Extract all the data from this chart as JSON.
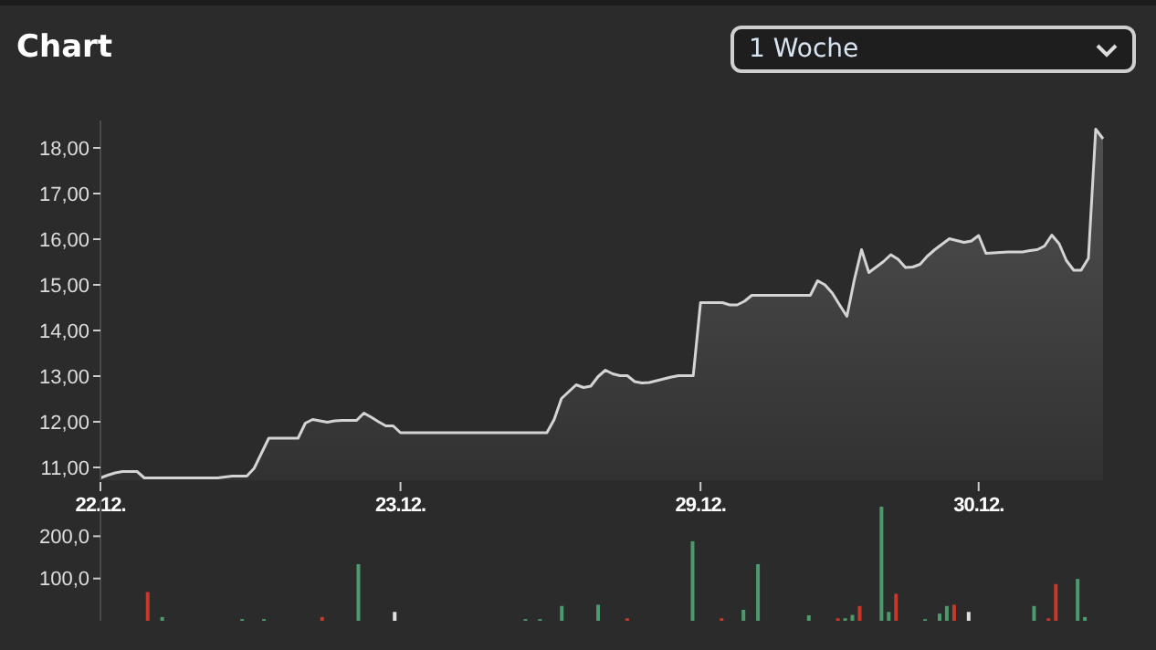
{
  "chart_data": [
    {
      "type": "area",
      "title": "Chart",
      "annotations": [
        "1 Woche"
      ],
      "categories": [
        "22.12.",
        null,
        null,
        null,
        null,
        null,
        null,
        null,
        null,
        null,
        null,
        null,
        null,
        null,
        null,
        null,
        null,
        null,
        null,
        null,
        null,
        null,
        null,
        null,
        null,
        null,
        null,
        null,
        null,
        null,
        null,
        null,
        null,
        null,
        null,
        null,
        null,
        null,
        null,
        null,
        null,
        "23.12.",
        null,
        null,
        null,
        null,
        null,
        null,
        null,
        null,
        null,
        null,
        null,
        null,
        null,
        null,
        null,
        null,
        null,
        null,
        null,
        null,
        null,
        null,
        null,
        null,
        null,
        null,
        null,
        null,
        null,
        null,
        null,
        null,
        null,
        null,
        null,
        null,
        null,
        null,
        null,
        null,
        "29.12.",
        null,
        null,
        null,
        null,
        null,
        null,
        null,
        null,
        null,
        null,
        null,
        null,
        null,
        null,
        null,
        null,
        null,
        null,
        null,
        null,
        null,
        null,
        null,
        null,
        null,
        null,
        null,
        null,
        null,
        null,
        null,
        null,
        null,
        null,
        null,
        null,
        null,
        "30.12.",
        null,
        null,
        null,
        null,
        null,
        null,
        null,
        null,
        null,
        null,
        null,
        null,
        null,
        null,
        null,
        null,
        null
      ],
      "series": [
        {
          "color": "#d4d4d4",
          "values": [
            10.77,
            10.83,
            10.88,
            10.91,
            10.91,
            10.91,
            10.77,
            10.77,
            10.77,
            10.77,
            10.77,
            10.77,
            10.77,
            10.77,
            10.77,
            10.77,
            10.77,
            10.79,
            10.81,
            10.81,
            10.81,
            10.98,
            11.31,
            11.64,
            11.64,
            11.64,
            11.64,
            11.64,
            11.97,
            12.05,
            12.02,
            11.99,
            12.02,
            12.03,
            12.03,
            12.03,
            12.19,
            12.1,
            12.0,
            11.91,
            11.91,
            11.76,
            11.76,
            11.76,
            11.76,
            11.76,
            11.76,
            11.76,
            11.76,
            11.76,
            11.76,
            11.76,
            11.76,
            11.76,
            11.76,
            11.76,
            11.76,
            11.76,
            11.76,
            11.76,
            11.76,
            11.76,
            12.05,
            12.51,
            12.66,
            12.81,
            12.75,
            12.78,
            12.99,
            13.13,
            13.05,
            13.01,
            13.01,
            12.88,
            12.85,
            12.86,
            12.9,
            12.94,
            12.98,
            13.01,
            13.01,
            13.01,
            14.61,
            14.61,
            14.61,
            14.61,
            14.56,
            14.56,
            14.64,
            14.77,
            14.77,
            14.77,
            14.77,
            14.77,
            14.77,
            14.77,
            14.77,
            14.77,
            15.09,
            15.0,
            14.82,
            14.56,
            14.31,
            15.1,
            15.77,
            15.27,
            15.39,
            15.51,
            15.66,
            15.56,
            15.38,
            15.39,
            15.45,
            15.63,
            15.77,
            15.89,
            16.01,
            15.97,
            15.93,
            15.96,
            16.08,
            15.69,
            15.7,
            15.71,
            15.72,
            15.72,
            15.72,
            15.75,
            15.77,
            15.85,
            16.09,
            15.9,
            15.53,
            15.32,
            15.32,
            15.58,
            18.41,
            18.2
          ]
        }
      ],
      "ylim": [
        10.72,
        18.6
      ],
      "yticks": [
        {
          "value": 11,
          "label": "11,00"
        },
        {
          "value": 12,
          "label": "12,00"
        },
        {
          "value": 13,
          "label": "13,00"
        },
        {
          "value": 14,
          "label": "14,00"
        },
        {
          "value": 15,
          "label": "15,00"
        },
        {
          "value": 16,
          "label": "16,00"
        },
        {
          "value": 17,
          "label": "17,00"
        },
        {
          "value": 18,
          "label": "18,00"
        }
      ]
    },
    {
      "type": "bar",
      "tick_labels": "y",
      "categories": [
        "22.12.",
        null,
        null,
        null,
        null,
        null,
        null,
        null,
        null,
        null,
        null,
        null,
        null,
        null,
        null,
        null,
        null,
        null,
        null,
        null,
        null,
        null,
        null,
        null,
        null,
        null,
        null,
        null,
        null,
        null,
        null,
        null,
        null,
        null,
        null,
        null,
        null,
        null,
        null,
        null,
        null,
        "23.12.",
        null,
        null,
        null,
        null,
        null,
        null,
        null,
        null,
        null,
        null,
        null,
        null,
        null,
        null,
        null,
        null,
        null,
        null,
        null,
        null,
        null,
        null,
        null,
        null,
        null,
        null,
        null,
        null,
        null,
        null,
        null,
        null,
        null,
        null,
        null,
        null,
        null,
        null,
        null,
        null,
        "29.12.",
        null,
        null,
        null,
        null,
        null,
        null,
        null,
        null,
        null,
        null,
        null,
        null,
        null,
        null,
        null,
        null,
        null,
        null,
        null,
        null,
        null,
        null,
        null,
        null,
        null,
        null,
        null,
        null,
        null,
        null,
        null,
        null,
        null,
        null,
        null,
        null,
        null,
        "30.12.",
        null,
        null,
        null,
        null,
        null,
        null,
        null,
        null,
        null,
        null,
        null,
        null,
        null,
        null,
        null,
        null,
        null
      ],
      "values": [
        null,
        null,
        null,
        null,
        null,
        null,
        68,
        null,
        9,
        null,
        null,
        null,
        null,
        null,
        null,
        null,
        null,
        null,
        null,
        4,
        null,
        null,
        4,
        null,
        null,
        null,
        null,
        null,
        null,
        null,
        9,
        null,
        null,
        null,
        null,
        134,
        null,
        null,
        null,
        null,
        21,
        null,
        null,
        null,
        null,
        null,
        null,
        null,
        null,
        null,
        null,
        null,
        null,
        null,
        null,
        null,
        null,
        null,
        4,
        null,
        4,
        null,
        null,
        35,
        null,
        null,
        null,
        null,
        38,
        null,
        null,
        null,
        6,
        null,
        null,
        null,
        null,
        null,
        null,
        null,
        null,
        188,
        null,
        null,
        null,
        6,
        null,
        null,
        26,
        null,
        134,
        null,
        null,
        null,
        null,
        null,
        null,
        13,
        null,
        null,
        null,
        6,
        6,
        14,
        35,
        null,
        null,
        270,
        21,
        64,
        null,
        null,
        null,
        4,
        null,
        17,
        35,
        38,
        null,
        21,
        null,
        null,
        null,
        null,
        null,
        null,
        null,
        null,
        35,
        null,
        6,
        87,
        null,
        null,
        99,
        9,
        null,
        null
      ],
      "colors": [
        null,
        null,
        null,
        null,
        null,
        null,
        "#c8392b",
        null,
        "#4c9a6e",
        null,
        null,
        null,
        null,
        null,
        null,
        null,
        null,
        null,
        null,
        "#4c9a6e",
        null,
        null,
        "#4c9a6e",
        null,
        null,
        null,
        null,
        null,
        null,
        null,
        "#c8392b",
        null,
        null,
        null,
        null,
        "#4c9a6e",
        null,
        null,
        null,
        null,
        "#e0e0e0",
        null,
        null,
        null,
        null,
        null,
        null,
        null,
        null,
        null,
        null,
        null,
        null,
        null,
        null,
        null,
        null,
        null,
        "#4c9a6e",
        null,
        "#4c9a6e",
        null,
        null,
        "#4c9a6e",
        null,
        null,
        null,
        null,
        "#4c9a6e",
        null,
        null,
        null,
        "#c8392b",
        null,
        null,
        null,
        null,
        null,
        null,
        null,
        null,
        "#4c9a6e",
        null,
        null,
        null,
        "#c8392b",
        null,
        null,
        "#4c9a6e",
        null,
        "#4c9a6e",
        null,
        null,
        null,
        null,
        null,
        null,
        "#4c9a6e",
        null,
        null,
        null,
        "#c8392b",
        "#4c9a6e",
        "#4c9a6e",
        "#c8392b",
        null,
        null,
        "#4c9a6e",
        "#4c9a6e",
        "#c8392b",
        null,
        null,
        null,
        "#4c9a6e",
        null,
        "#4c9a6e",
        "#4c9a6e",
        "#c8392b",
        null,
        "#e0e0e0",
        null,
        null,
        null,
        null,
        null,
        null,
        null,
        null,
        "#4c9a6e",
        null,
        "#c8392b",
        "#c8392b",
        null,
        null,
        "#4c9a6e",
        "#4c9a6e",
        null,
        null
      ],
      "ylim": [
        0,
        285
      ],
      "yticks": [
        {
          "value": 100,
          "label": "100,0"
        },
        {
          "value": 200,
          "label": "200,0"
        }
      ]
    }
  ]
}
